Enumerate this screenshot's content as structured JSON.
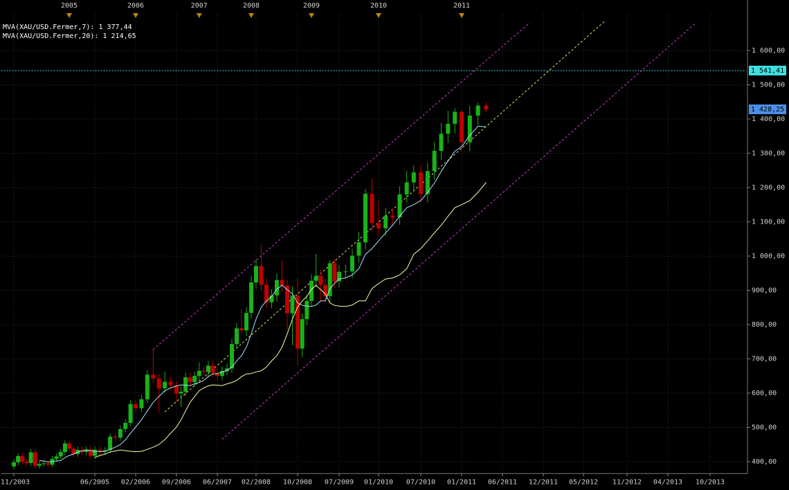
{
  "chart_data": {
    "type": "candlestick",
    "x": [
      "2003-11",
      "2003-12",
      "2004-01",
      "2004-02",
      "2004-03",
      "2004-04",
      "2004-05",
      "2004-06",
      "2004-07",
      "2004-08",
      "2004-09",
      "2004-10",
      "2004-11",
      "2004-12",
      "2005-01",
      "2005-02",
      "2005-03",
      "2005-04",
      "2005-05",
      "2005-06",
      "2005-07",
      "2005-08",
      "2005-09",
      "2005-10",
      "2005-11",
      "2005-12",
      "2006-01",
      "2006-02",
      "2006-03",
      "2006-04",
      "2006-05",
      "2006-06",
      "2006-07",
      "2006-08",
      "2006-09",
      "2006-10",
      "2006-11",
      "2006-12",
      "2007-01",
      "2007-02",
      "2007-03",
      "2007-04",
      "2007-05",
      "2007-06",
      "2007-07",
      "2007-08",
      "2007-09",
      "2007-10",
      "2007-11",
      "2007-12",
      "2008-01",
      "2008-02",
      "2008-03",
      "2008-04",
      "2008-05",
      "2008-06",
      "2008-07",
      "2008-08",
      "2008-09",
      "2008-10",
      "2008-11",
      "2008-12",
      "2009-01",
      "2009-02",
      "2009-03",
      "2009-04",
      "2009-05",
      "2009-06",
      "2009-07",
      "2009-08",
      "2009-09",
      "2009-10",
      "2009-11",
      "2009-12",
      "2010-01",
      "2010-02",
      "2010-03",
      "2010-04",
      "2010-05",
      "2010-06",
      "2010-07",
      "2010-08",
      "2010-09",
      "2010-10",
      "2010-11",
      "2010-12",
      "2011-01",
      "2011-02",
      "2011-03",
      "2011-04"
    ],
    "open": [
      386,
      398,
      416,
      400,
      396,
      427,
      388,
      393,
      395,
      391,
      408,
      415,
      428,
      453,
      438,
      422,
      434,
      428,
      435,
      417,
      435,
      429,
      433,
      473,
      470,
      495,
      513,
      568,
      556,
      582,
      654,
      643,
      614,
      633,
      623,
      599,
      604,
      646,
      632,
      650,
      665,
      662,
      680,
      659,
      650,
      665,
      672,
      743,
      789,
      783,
      834,
      923,
      971,
      916,
      865,
      885,
      930,
      914,
      833,
      884,
      730,
      816,
      869,
      928,
      942,
      916,
      883,
      979,
      926,
      954,
      955,
      1001,
      1040,
      1182,
      1096,
      1081,
      1118,
      1113,
      1180,
      1215,
      1244,
      1181,
      1248,
      1307,
      1357,
      1386,
      1421,
      1332,
      1410,
      1439
    ],
    "high": [
      406,
      424,
      425,
      408,
      436,
      436,
      401,
      403,
      403,
      416,
      423,
      437,
      462,
      462,
      447,
      443,
      443,
      444,
      444,
      444,
      444,
      442,
      482,
      482,
      505,
      523,
      579,
      579,
      594,
      667,
      730,
      656,
      663,
      646,
      635,
      620,
      659,
      659,
      663,
      690,
      678,
      694,
      694,
      672,
      678,
      686,
      758,
      805,
      845,
      851,
      941,
      990,
      1032,
      934,
      903,
      949,
      988,
      932,
      912,
      935,
      832,
      886,
      947,
      1006,
      961,
      934,
      987,
      990,
      973,
      974,
      1021,
      1070,
      1196,
      1227,
      1162,
      1141,
      1140,
      1204,
      1249,
      1265,
      1265,
      1273,
      1333,
      1388,
      1424,
      1431,
      1425,
      1438,
      1447,
      1448
    ],
    "low": [
      378,
      390,
      392,
      388,
      388,
      380,
      380,
      385,
      383,
      383,
      400,
      407,
      419,
      429,
      414,
      414,
      419,
      419,
      409,
      409,
      420,
      420,
      424,
      461,
      461,
      485,
      503,
      545,
      545,
      570,
      630,
      543,
      602,
      611,
      573,
      560,
      592,
      619,
      619,
      637,
      650,
      649,
      646,
      637,
      637,
      652,
      659,
      728,
      773,
      767,
      817,
      905,
      898,
      848,
      848,
      867,
      896,
      786,
      740,
      681,
      705,
      800,
      852,
      909,
      866,
      865,
      865,
      907,
      908,
      935,
      936,
      981,
      1019,
      1074,
      1058,
      1059,
      1091,
      1091,
      1156,
      1191,
      1157,
      1157,
      1223,
      1281,
      1330,
      1358,
      1309,
      1306,
      1382,
      1420
    ],
    "close": [
      398,
      416,
      400,
      396,
      427,
      388,
      393,
      395,
      391,
      408,
      415,
      428,
      453,
      438,
      422,
      434,
      428,
      435,
      417,
      435,
      429,
      433,
      473,
      470,
      495,
      513,
      568,
      556,
      582,
      654,
      643,
      614,
      633,
      623,
      599,
      604,
      646,
      632,
      650,
      665,
      662,
      680,
      659,
      650,
      665,
      672,
      743,
      789,
      783,
      834,
      923,
      971,
      916,
      865,
      885,
      930,
      914,
      833,
      884,
      730,
      816,
      869,
      928,
      942,
      916,
      883,
      979,
      926,
      954,
      955,
      1001,
      1040,
      1182,
      1096,
      1081,
      1118,
      1113,
      1180,
      1215,
      1244,
      1181,
      1248,
      1307,
      1357,
      1386,
      1421,
      1332,
      1410,
      1439,
      1428
    ],
    "up_color": "#19b219",
    "down_color": "#c00000",
    "series": [
      {
        "name": "MVA(XAU/USD.Fermer,7): 1 377,44",
        "color": "#a8e4ff",
        "values": [
          null,
          null,
          null,
          null,
          null,
          null,
          403,
          402,
          399,
          400,
          402,
          403,
          412,
          418,
          422,
          428,
          431,
          434,
          432,
          430,
          429,
          430,
          436,
          442,
          450,
          464,
          483,
          501,
          522,
          548,
          573,
          590,
          607,
          615,
          621,
          624,
          623,
          622,
          627,
          631,
          637,
          648,
          656,
          657,
          662,
          665,
          676,
          694,
          709,
          734,
          773,
          816,
          851,
          869,
          882,
          903,
          915,
          902,
          890,
          863,
          856,
          854,
          853,
          857,
          869,
          869,
          905,
          920,
          933,
          936,
          945,
          963,
          1005,
          1022,
          1044,
          1068,
          1090,
          1116,
          1141,
          1150,
          1162,
          1186,
          1213,
          1247,
          1277,
          1306,
          1319,
          1352,
          1379,
          1377
        ]
      },
      {
        "name": "MVA(XAU/USD.Fermer,20): 1 214,65",
        "color": "#ffffa8",
        "values": [
          null,
          null,
          null,
          null,
          null,
          null,
          null,
          null,
          null,
          null,
          null,
          null,
          null,
          null,
          null,
          null,
          null,
          null,
          null,
          412,
          418,
          422,
          428,
          431,
          434,
          432,
          430,
          429,
          430,
          436,
          442,
          450,
          464,
          483,
          501,
          522,
          548,
          573,
          590,
          607,
          615,
          621,
          624,
          623,
          622,
          627,
          631,
          637,
          648,
          656,
          657,
          662,
          665,
          676,
          694,
          709,
          734,
          773,
          816,
          851,
          869,
          882,
          903,
          915,
          902,
          890,
          863,
          856,
          854,
          853,
          857,
          869,
          869,
          905,
          920,
          933,
          936,
          945,
          963,
          1005,
          1022,
          1044,
          1068,
          1090,
          1116,
          1141,
          1150,
          1162,
          1186,
          1215
        ]
      }
    ],
    "trendlines": [
      {
        "color": "#d040d0",
        "x": [
          "2006-05",
          "2011-10"
        ],
        "values": [
          727,
          1681
        ]
      },
      {
        "color": "#d040d0",
        "x": [
          "2007-07",
          "2013-08"
        ],
        "values": [
          465,
          1681
        ]
      },
      {
        "color": "#e8e860",
        "x": [
          "2006-07",
          "2012-08"
        ],
        "values": [
          545,
          1687
        ]
      }
    ],
    "hline": {
      "value": 1541.41,
      "label": "1 541,41",
      "color": "#40e0e0"
    },
    "last_price": {
      "value": 1428.25,
      "label": "1 428,25",
      "color": "#4a90e8"
    },
    "xlim": [
      "2003-08",
      "2014-03"
    ],
    "xticks": [
      {
        "value": "2003-11",
        "label": "11/2003"
      },
      {
        "value": "2005-06",
        "label": "06/2005"
      },
      {
        "value": "2006-02",
        "label": "02/2006"
      },
      {
        "value": "2006-09",
        "label": "09/2006"
      },
      {
        "value": "2007-06",
        "label": "06/2007"
      },
      {
        "value": "2008-02",
        "label": "02/2008"
      },
      {
        "value": "2008-10",
        "label": "10/2008"
      },
      {
        "value": "2009-07",
        "label": "07/2009"
      },
      {
        "value": "2010-01",
        "label": "01/2010"
      },
      {
        "value": "2010-07",
        "label": "07/2010"
      },
      {
        "value": "2011-01",
        "label": "01/2011"
      },
      {
        "value": "2011-06",
        "label": "06/2011"
      },
      {
        "value": "2011-12",
        "label": "12/2011"
      },
      {
        "value": "2012-05",
        "label": "05/2012"
      },
      {
        "value": "2012-11",
        "label": "11/2012"
      },
      {
        "value": "2013-04",
        "label": "04/2013"
      },
      {
        "value": "2013-10",
        "label": "10/2013"
      }
    ],
    "top_markers": [
      {
        "value": "2004-12",
        "label": "2005"
      },
      {
        "value": "2006-02",
        "label": "2006"
      },
      {
        "value": "2007-02",
        "label": "2007"
      },
      {
        "value": "2008-01",
        "label": "2008"
      },
      {
        "value": "2009-01",
        "label": "2009"
      },
      {
        "value": "2010-01",
        "label": "2010"
      },
      {
        "value": "2011-01",
        "label": "2011"
      }
    ],
    "ylim": [
      365,
      1710
    ],
    "yticks": [
      {
        "value": 400,
        "label": "400,00"
      },
      {
        "value": 500,
        "label": "500,00"
      },
      {
        "value": 600,
        "label": "600,00"
      },
      {
        "value": 700,
        "label": "700,00"
      },
      {
        "value": 800,
        "label": "800,00"
      },
      {
        "value": 900,
        "label": "900,00"
      },
      {
        "value": 1000,
        "label": "1 000,00"
      },
      {
        "value": 1100,
        "label": "1 100,00"
      },
      {
        "value": 1200,
        "label": "1 200,00"
      },
      {
        "value": 1300,
        "label": "1 300,00"
      },
      {
        "value": 1400,
        "label": "1 400,00"
      },
      {
        "value": 1500,
        "label": "1 500,00"
      },
      {
        "value": 1600,
        "label": "1 600,00"
      }
    ],
    "grid": true
  }
}
